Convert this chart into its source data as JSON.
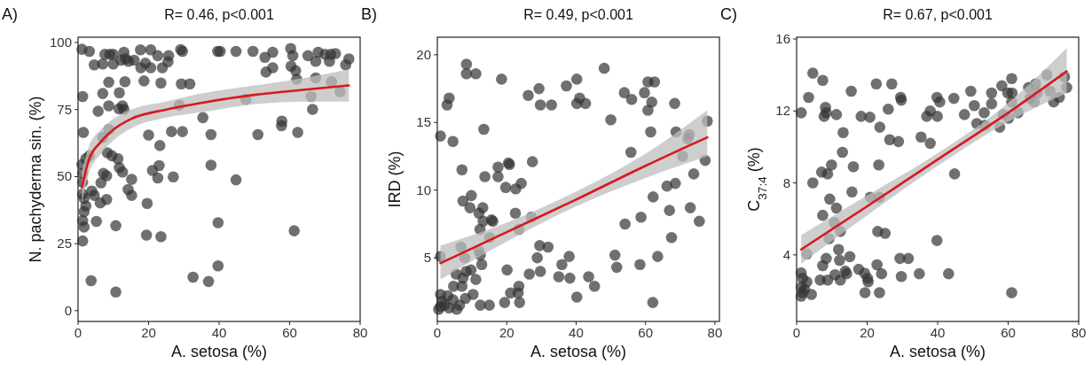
{
  "chart_data": [
    {
      "type": "scatter",
      "title": "R= 0.46, p<0.001",
      "xlabel": "A. setosa (%)",
      "ylabel": "N. pachyderma sin. (%)",
      "annotations": [
        "A)"
      ],
      "xlim": [
        0,
        80
      ],
      "ylim": [
        -4,
        102
      ],
      "xticks": [
        0,
        20,
        40,
        60,
        80
      ],
      "yticks": [
        0,
        25,
        50,
        75,
        100
      ],
      "series": [
        {
          "marker": "circle",
          "color": "#333333",
          "x": [
            1.1,
            3.2,
            7.6,
            9.0,
            10.0,
            13.0,
            13.5,
            15.9,
            17.7,
            20.6,
            22.6,
            25.7,
            29.1,
            29.6,
            39.6,
            40.3,
            44.8,
            49.6,
            53.0,
            55.2,
            60.3,
            60.9,
            65.2,
            68.1,
            70.0,
            71.7,
            73.0,
            76.8,
            75.9,
            4.6,
            7.0,
            10.0,
            12.2,
            14.3,
            17.8,
            19.1,
            20.6,
            23.9,
            25.5,
            55.2,
            53.3,
            60.4,
            61.7,
            67.4,
            71.3,
            8.7,
            13.3,
            18.7,
            23.5,
            29.3,
            31.7,
            62.0,
            67.4,
            71.9,
            1.3,
            7.0,
            11.7,
            66.1,
            74.3,
            47.6,
            8.7,
            12.6,
            5.7,
            11.6,
            13.0,
            28.7,
            66.5,
            35.4,
            57.8,
            57.7,
            1.5,
            8.7,
            7.0,
            20.0,
            26.5,
            29.6,
            37.7,
            51.0,
            62.3,
            23.2,
            8.3,
            9.6,
            11.3,
            11.7,
            12.6,
            7.2,
            8.1,
            2.2,
            3.2,
            1.1,
            37.7,
            23.0,
            21.1,
            22.6,
            27.0,
            44.8,
            6.5,
            15.2,
            14.2,
            15.2,
            3.9,
            4.6,
            1.3,
            1.7,
            8.1,
            6.3,
            2.2,
            1.7,
            1.3,
            5.2,
            10.7,
            1.7,
            1.3,
            19.6,
            19.4,
            23.5,
            39.7,
            61.3,
            39.7,
            3.7,
            10.7,
            32.6,
            37.0,
            1.3,
            1.3
          ],
          "values": [
            97.5,
            96.7,
            95.6,
            95.6,
            95.6,
            96.4,
            94.0,
            93.4,
            97.3,
            97.3,
            95.1,
            95.1,
            97.4,
            96.7,
            96.7,
            96.7,
            96.7,
            96.7,
            94.5,
            96.4,
            97.8,
            95.1,
            95.1,
            96.4,
            95.6,
            95.6,
            95.9,
            93.9,
            91.7,
            91.7,
            92.0,
            92.0,
            93.4,
            93.0,
            90.6,
            92.3,
            90.6,
            90.6,
            92.8,
            90.6,
            89.0,
            91.2,
            89.5,
            93.0,
            93.0,
            85.2,
            85.4,
            85.7,
            84.9,
            84.6,
            84.6,
            86.3,
            86.8,
            85.4,
            79.9,
            81.0,
            81.3,
            79.9,
            81.7,
            78.8,
            76.4,
            76.4,
            74.4,
            75.3,
            75.1,
            76.6,
            75.1,
            72.0,
            70.7,
            69.0,
            66.5,
            67.6,
            64.6,
            65.5,
            66.8,
            66.8,
            65.7,
            65.7,
            66.5,
            61.6,
            58.9,
            57.8,
            56.7,
            53.4,
            51.7,
            51.2,
            50.3,
            56.7,
            57.8,
            54.5,
            54.3,
            54.1,
            52.3,
            49.5,
            49.9,
            48.8,
            47.7,
            49.0,
            45.2,
            43.0,
            44.6,
            43.0,
            43.5,
            41.9,
            41.5,
            40.2,
            39.1,
            36.9,
            33.6,
            33.3,
            31.7,
            31.2,
            26.0,
            40.0,
            28.2,
            27.6,
            32.8,
            29.8,
            16.7,
            11.2,
            7.0,
            12.5,
            10.9,
            47.9,
            51.2
          ]
        },
        {
          "type": "line",
          "marker": "none",
          "color": "#d7191c",
          "x": [
            1.1,
            3,
            6.5,
            10,
            15,
            25,
            35,
            50,
            65,
            76.8
          ],
          "values": [
            46,
            56,
            63,
            67.5,
            71.5,
            75,
            77.5,
            80.5,
            82.5,
            84
          ],
          "lower": [
            40,
            51,
            58.5,
            63.5,
            68,
            72,
            74,
            77,
            78,
            78
          ],
          "upper": [
            52,
            61,
            67.5,
            71.5,
            75,
            78,
            81,
            84,
            87,
            90
          ]
        }
      ]
    },
    {
      "type": "scatter",
      "title": "R= 0.49, p<0.001",
      "xlabel": "A. setosa (%)",
      "ylabel": "IRD (%)",
      "annotations": [
        "B)"
      ],
      "xlim": [
        0,
        81.3
      ],
      "ylim": [
        0.3,
        21.3
      ],
      "xticks": [
        0,
        20,
        40,
        60,
        80
      ],
      "yticks": [
        5,
        10,
        15,
        20
      ],
      "series": [
        {
          "marker": "circle",
          "color": "#333333",
          "x": [
            8.4,
            8.4,
            11.1,
            18.5,
            48.1,
            37.2,
            40.2,
            29.3,
            26.2,
            29.7,
            32.9,
            40.2,
            41.0,
            42.7,
            3.4,
            2.8,
            53.9,
            56.0,
            59.7,
            60.7,
            62.6,
            61.8,
            60.7,
            68.4,
            50.0,
            77.8,
            0.9,
            4.5,
            13.4,
            61.5,
            68.8,
            72.2,
            72.6,
            70.7,
            55.8,
            77.2,
            73.9,
            7.1,
            17.5,
            20.5,
            20.8,
            27.4,
            17.5,
            13.7,
            24.2,
            22.6,
            19.7,
            9.8,
            7.4,
            9.4,
            13.1,
            12.0,
            13.2,
            15.6,
            16.0,
            22.5,
            27.1,
            23.5,
            12.3,
            15.1,
            62.2,
            66.2,
            68.6,
            66.9,
            72.9,
            75.5,
            58.7,
            54.1,
            67.5,
            63.5,
            58.4,
            51.2,
            51.7,
            38.0,
            35.9,
            29.5,
            31.9,
            28.8,
            29.7,
            26.5,
            20.1,
            35.0,
            38.2,
            43.6,
            45.3,
            40.2,
            62.1,
            23.5,
            21.1,
            23.3,
            23.7,
            19.4,
            0.9,
            6.8,
            7.9,
            12.4,
            12.8,
            12.0,
            8.3,
            9.7,
            5.4,
            11.1,
            7.4,
            7.1,
            4.7,
            10.3,
            8.1,
            12.4,
            15.0,
            0.9,
            1.3,
            2.1,
            3.4,
            5.6,
            0.4,
            0.9,
            3.0,
            6.4,
            4.5
          ],
          "values": [
            19.3,
            18.6,
            18.6,
            18.2,
            19.0,
            17.7,
            18.2,
            17.5,
            17.0,
            16.3,
            16.3,
            16.4,
            16.8,
            16.4,
            16.8,
            16.3,
            17.2,
            16.7,
            17.2,
            18.0,
            18.0,
            16.5,
            15.9,
            16.4,
            15.2,
            15.1,
            14.0,
            13.6,
            14.5,
            14.3,
            14.3,
            13.8,
            14.1,
            12.5,
            12.8,
            12.2,
            11.2,
            11.5,
            11.7,
            12.0,
            11.9,
            12.1,
            11.0,
            11.0,
            10.5,
            10.1,
            10.2,
            9.6,
            9.2,
            8.7,
            8.7,
            8.3,
            7.7,
            7.8,
            7.7,
            8.3,
            8.0,
            7.1,
            7.1,
            6.5,
            9.5,
            10.3,
            10.5,
            8.5,
            8.7,
            7.7,
            8.0,
            7.5,
            6.5,
            5.1,
            4.5,
            5.2,
            4.3,
            5.1,
            4.5,
            5.9,
            5.8,
            5.0,
            4.0,
            3.8,
            4.1,
            3.6,
            3.5,
            3.6,
            2.9,
            2.1,
            1.7,
            2.9,
            2.4,
            2.4,
            1.7,
            1.7,
            5.1,
            5.8,
            5.0,
            5.2,
            4.5,
            5.5,
            4.0,
            4.1,
            3.8,
            3.4,
            3.5,
            2.9,
            2.9,
            2.3,
            2.0,
            1.5,
            1.5,
            2.3,
            1.8,
            1.5,
            1.3,
            1.2,
            1.2,
            1.4,
            2.2,
            1.5,
            1.9
          ]
        },
        {
          "type": "line",
          "marker": "none",
          "color": "#d7191c",
          "x": [
            0.9,
            20,
            40,
            60,
            77.8
          ],
          "values": [
            4.6,
            6.9,
            9.3,
            11.8,
            13.9
          ],
          "lower": [
            3.4,
            6.2,
            8.8,
            10.9,
            12.5
          ],
          "upper": [
            5.9,
            7.6,
            9.9,
            12.7,
            15.9
          ]
        }
      ]
    },
    {
      "type": "scatter",
      "title": "R= 0.67, p<0.001",
      "xlabel": "A. setosa (%)",
      "ylabel": "C$_{37:4}$ (%)",
      "annotations": [
        "C)"
      ],
      "xlim": [
        0,
        80
      ],
      "ylim": [
        0.3,
        16.1
      ],
      "xticks": [
        0,
        20,
        40,
        60,
        80
      ],
      "yticks": [
        4,
        8,
        12,
        16
      ],
      "series": [
        {
          "marker": "circle",
          "color": "#333333",
          "x": [
            4.6,
            7.4,
            3.4,
            1.3,
            8.2,
            8.4,
            7.8,
            11.3,
            15.5,
            22.6,
            27.0,
            29.5,
            29.7,
            18.3,
            20.8,
            26.0,
            23.6,
            13.2,
            26.4,
            28.9,
            35.3,
            37.9,
            36.9,
            37.9,
            39.9,
            39.8,
            40.6,
            44.6,
            47.6,
            49.4,
            50.4,
            51.1,
            53.2,
            53.4,
            55.3,
            55.3,
            57.6,
            58.2,
            58.6,
            59.9,
            60.1,
            61.0,
            61.1,
            61.0,
            62.8,
            65.8,
            66.2,
            67.4,
            67.8,
            68.3,
            71.0,
            71.9,
            72.9,
            74.5,
            76.0,
            76.6,
            44.8,
            39.8,
            4.6,
            7.1,
            8.8,
            9.9,
            13.0,
            16.1,
            15.7,
            23.3,
            20.9,
            23.5,
            9.4,
            11.3,
            7.4,
            10.7,
            12.4,
            9.2,
            23.0,
            25.1,
            2.9,
            11.9,
            12.2,
            15.1,
            8.4,
            7.4,
            29.3,
            31.7,
            22.8,
            24.1,
            29.7,
            34.8,
            43.1,
            19.3,
            20.1,
            20.3,
            19.4,
            23.5,
            61.0,
            17.6,
            13.8,
            10.9,
            8.8,
            6.7,
            12.4,
            14.2,
            1.3,
            1.7,
            2.9,
            1.3,
            1.7,
            4.2,
            2.3,
            1.3
          ],
          "values": [
            14.1,
            13.7,
            12.75,
            11.9,
            12.2,
            11.9,
            11.7,
            11.8,
            13.1,
            13.5,
            13.5,
            12.75,
            12.6,
            11.7,
            11.65,
            12.1,
            11.1,
            10.8,
            10.4,
            10.3,
            10.55,
            10.2,
            11.7,
            12.0,
            11.7,
            12.75,
            12.5,
            12.7,
            11.8,
            13.1,
            12.3,
            11.3,
            11.9,
            11.2,
            13.0,
            12.4,
            11.1,
            13.4,
            11.8,
            13.0,
            11.6,
            13.8,
            13.0,
            12.5,
            11.9,
            13.3,
            12.7,
            12.5,
            13.5,
            13.0,
            14.0,
            13.1,
            12.5,
            12.75,
            13.9,
            13.3,
            8.5,
            4.8,
            8.0,
            8.6,
            8.5,
            9.0,
            9.7,
            8.9,
            7.5,
            9.0,
            7.2,
            7.2,
            7.1,
            6.6,
            6.2,
            5.8,
            5.3,
            4.9,
            5.3,
            5.2,
            4.05,
            4.3,
            3.7,
            3.9,
            3.8,
            3.4,
            3.8,
            3.8,
            3.45,
            2.95,
            2.8,
            2.95,
            2.95,
            2.98,
            2.7,
            2.5,
            1.9,
            1.9,
            1.9,
            3.2,
            3.1,
            2.9,
            2.6,
            2.6,
            2.6,
            2.95,
            3.0,
            2.7,
            2.5,
            2.2,
            1.9,
            1.8,
            2.1,
            1.7
          ]
        },
        {
          "type": "line",
          "marker": "none",
          "color": "#d7191c",
          "x": [
            1.3,
            20,
            40,
            60,
            76.6
          ],
          "values": [
            4.3,
            6.7,
            9.3,
            11.9,
            14.2
          ],
          "lower": [
            3.5,
            6.2,
            8.95,
            11.4,
            13.0
          ],
          "upper": [
            5.1,
            7.3,
            9.65,
            12.45,
            15.5
          ]
        }
      ]
    }
  ]
}
